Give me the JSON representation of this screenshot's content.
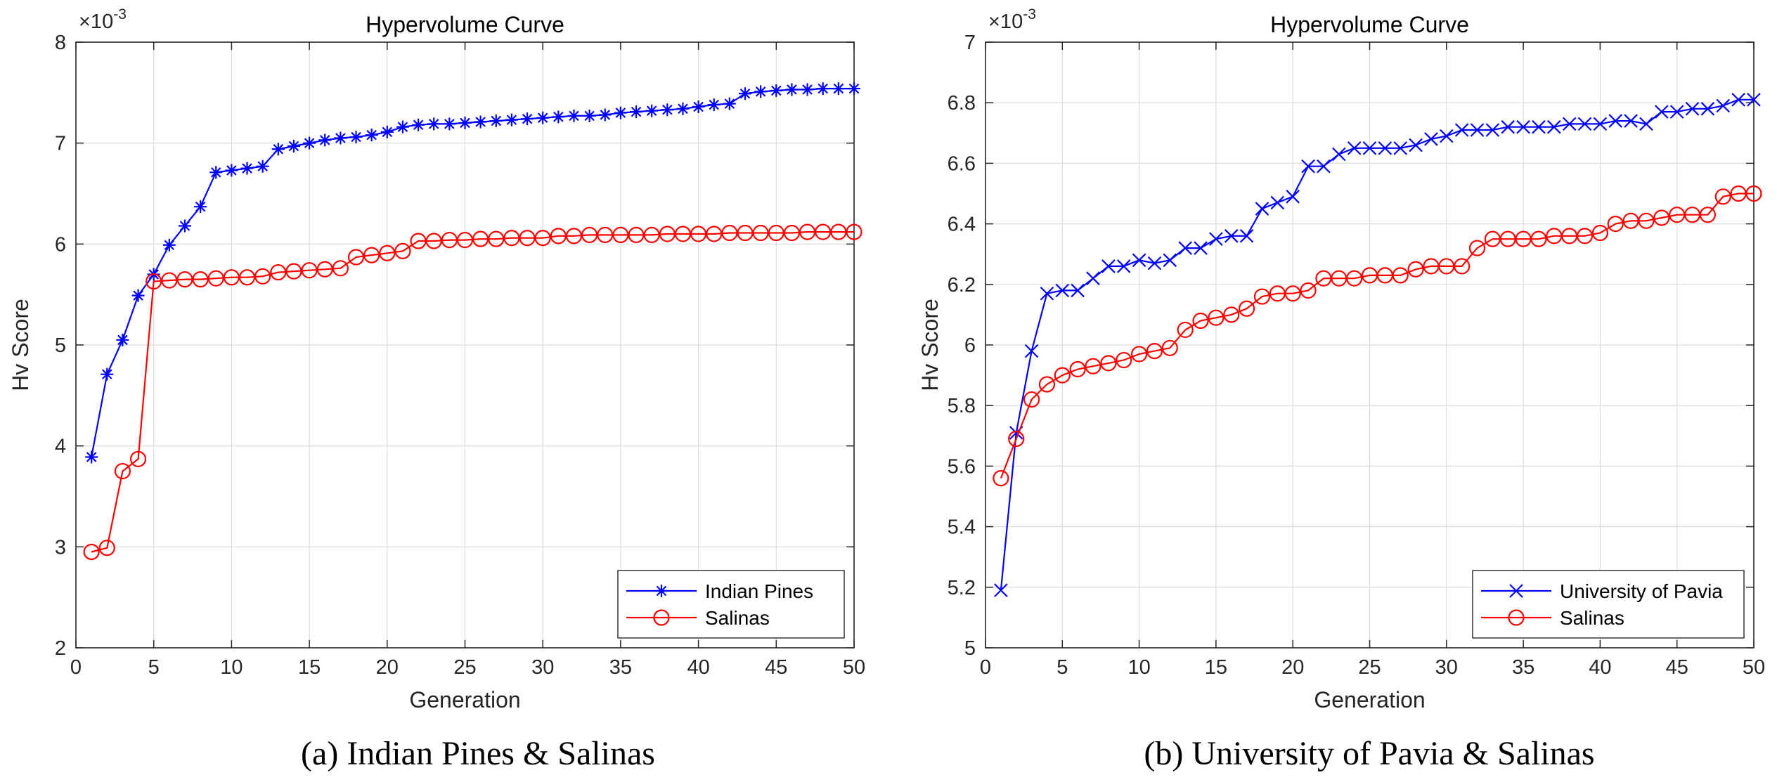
{
  "chart_data": [
    {
      "type": "line",
      "title": "Hypervolume Curve",
      "xlabel": "Generation",
      "ylabel": "Hv Score",
      "y_exponent": "-3",
      "xlim": [
        0,
        50
      ],
      "ylim": [
        2,
        8
      ],
      "xticks": [
        "0",
        "5",
        "10",
        "15",
        "20",
        "25",
        "30",
        "35",
        "40",
        "45",
        "50"
      ],
      "yticks": [
        "2",
        "3",
        "4",
        "5",
        "6",
        "7",
        "8"
      ],
      "grid": true,
      "legend_position": "bottom-right",
      "caption": "(a) Indian Pines & Salinas",
      "series": [
        {
          "name": "Indian Pines",
          "color": "#0000ff",
          "marker": "asterisk",
          "x": [
            1,
            2,
            3,
            4,
            5,
            6,
            7,
            8,
            9,
            10,
            11,
            12,
            13,
            14,
            15,
            16,
            17,
            18,
            19,
            20,
            21,
            22,
            23,
            24,
            25,
            26,
            27,
            28,
            29,
            30,
            31,
            32,
            33,
            34,
            35,
            36,
            37,
            38,
            39,
            40,
            41,
            42,
            43,
            44,
            45,
            46,
            47,
            48,
            49,
            50
          ],
          "values": [
            3.89,
            4.71,
            5.05,
            5.49,
            5.7,
            5.99,
            6.18,
            6.37,
            6.71,
            6.73,
            6.75,
            6.77,
            6.94,
            6.97,
            7.0,
            7.03,
            7.05,
            7.06,
            7.08,
            7.11,
            7.16,
            7.18,
            7.19,
            7.19,
            7.2,
            7.21,
            7.22,
            7.23,
            7.24,
            7.25,
            7.26,
            7.27,
            7.27,
            7.28,
            7.3,
            7.31,
            7.32,
            7.33,
            7.34,
            7.36,
            7.38,
            7.39,
            7.49,
            7.51,
            7.52,
            7.53,
            7.53,
            7.54,
            7.54,
            7.54
          ]
        },
        {
          "name": "Salinas",
          "color": "#ff0000",
          "marker": "circle",
          "x": [
            1,
            2,
            3,
            4,
            5,
            6,
            7,
            8,
            9,
            10,
            11,
            12,
            13,
            14,
            15,
            16,
            17,
            18,
            19,
            20,
            21,
            22,
            23,
            24,
            25,
            26,
            27,
            28,
            29,
            30,
            31,
            32,
            33,
            34,
            35,
            36,
            37,
            38,
            39,
            40,
            41,
            42,
            43,
            44,
            45,
            46,
            47,
            48,
            49,
            50
          ],
          "values": [
            2.95,
            2.99,
            3.75,
            3.87,
            5.63,
            5.64,
            5.65,
            5.65,
            5.66,
            5.67,
            5.67,
            5.68,
            5.72,
            5.73,
            5.74,
            5.75,
            5.76,
            5.87,
            5.89,
            5.91,
            5.93,
            6.03,
            6.03,
            6.04,
            6.04,
            6.05,
            6.05,
            6.06,
            6.06,
            6.06,
            6.08,
            6.08,
            6.09,
            6.09,
            6.09,
            6.09,
            6.09,
            6.1,
            6.1,
            6.1,
            6.1,
            6.11,
            6.11,
            6.11,
            6.11,
            6.11,
            6.12,
            6.12,
            6.12,
            6.12
          ]
        }
      ]
    },
    {
      "type": "line",
      "title": "Hypervolume Curve",
      "xlabel": "Generation",
      "ylabel": "Hv Score",
      "y_exponent": "-3",
      "xlim": [
        0,
        50
      ],
      "ylim": [
        5,
        7
      ],
      "xticks": [
        "0",
        "5",
        "10",
        "15",
        "20",
        "25",
        "30",
        "35",
        "40",
        "45",
        "50"
      ],
      "yticks": [
        "5",
        "5.2",
        "5.4",
        "5.6",
        "5.8",
        "6",
        "6.2",
        "6.4",
        "6.6",
        "6.8",
        "7"
      ],
      "grid": true,
      "legend_position": "bottom-right",
      "caption": "(b) University of Pavia & Salinas",
      "series": [
        {
          "name": "University of Pavia",
          "color": "#0000ff",
          "marker": "x",
          "x": [
            1,
            2,
            3,
            4,
            5,
            6,
            7,
            8,
            9,
            10,
            11,
            12,
            13,
            14,
            15,
            16,
            17,
            18,
            19,
            20,
            21,
            22,
            23,
            24,
            25,
            26,
            27,
            28,
            29,
            30,
            31,
            32,
            33,
            34,
            35,
            36,
            37,
            38,
            39,
            40,
            41,
            42,
            43,
            44,
            45,
            46,
            47,
            48,
            49,
            50
          ],
          "values": [
            5.19,
            5.71,
            5.98,
            6.17,
            6.18,
            6.18,
            6.22,
            6.26,
            6.26,
            6.28,
            6.27,
            6.28,
            6.32,
            6.32,
            6.35,
            6.36,
            6.36,
            6.45,
            6.47,
            6.49,
            6.59,
            6.59,
            6.63,
            6.65,
            6.65,
            6.65,
            6.65,
            6.66,
            6.68,
            6.69,
            6.71,
            6.71,
            6.71,
            6.72,
            6.72,
            6.72,
            6.72,
            6.73,
            6.73,
            6.73,
            6.74,
            6.74,
            6.73,
            6.77,
            6.77,
            6.78,
            6.78,
            6.79,
            6.81,
            6.81
          ]
        },
        {
          "name": "Salinas",
          "color": "#ff0000",
          "marker": "circle",
          "x": [
            1,
            2,
            3,
            4,
            5,
            6,
            7,
            8,
            9,
            10,
            11,
            12,
            13,
            14,
            15,
            16,
            17,
            18,
            19,
            20,
            21,
            22,
            23,
            24,
            25,
            26,
            27,
            28,
            29,
            30,
            31,
            32,
            33,
            34,
            35,
            36,
            37,
            38,
            39,
            40,
            41,
            42,
            43,
            44,
            45,
            46,
            47,
            48,
            49,
            50
          ],
          "values": [
            5.56,
            5.69,
            5.82,
            5.87,
            5.9,
            5.92,
            5.93,
            5.94,
            5.95,
            5.97,
            5.98,
            5.99,
            6.05,
            6.08,
            6.09,
            6.1,
            6.12,
            6.16,
            6.17,
            6.17,
            6.18,
            6.22,
            6.22,
            6.22,
            6.23,
            6.23,
            6.23,
            6.25,
            6.26,
            6.26,
            6.26,
            6.32,
            6.35,
            6.35,
            6.35,
            6.35,
            6.36,
            6.36,
            6.36,
            6.37,
            6.4,
            6.41,
            6.41,
            6.42,
            6.43,
            6.43,
            6.43,
            6.49,
            6.5,
            6.5
          ]
        }
      ]
    }
  ]
}
